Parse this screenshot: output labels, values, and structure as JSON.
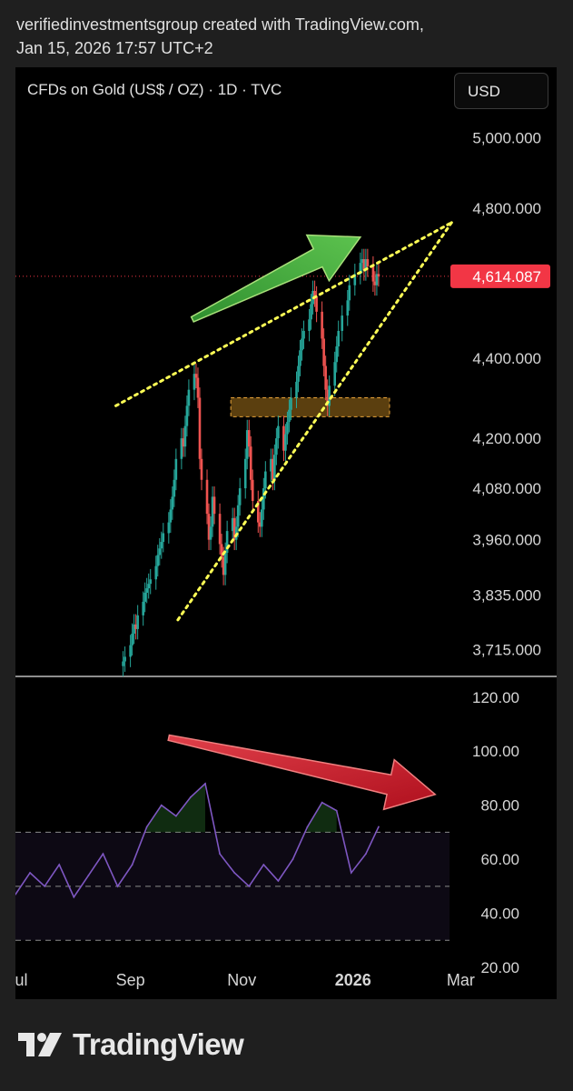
{
  "header": {
    "line1": "verifiedinvestmentsgroup created with TradingView.com,",
    "line2": "Jan 15, 2026 17:57 UTC+2"
  },
  "toolbar": {
    "currency": "USD"
  },
  "brand": {
    "name": "TradingView",
    "icon": "tradingview-logo-icon"
  },
  "colors": {
    "up": "#26a69a",
    "down": "#ef5350",
    "price_tag": "#f23645",
    "rsi": "#7e57c2",
    "up_arrow": "#3aa83a",
    "down_arrow": "#c8202e",
    "trendline": "#ffff55",
    "zone": "#6b4a12"
  },
  "chart_data": [
    {
      "type": "candlestick",
      "title": "CFDs on Gold (US$ / OZ) · 1D · TVC",
      "y_tick_labels": [
        "5,000.000",
        "4,800.000",
        "4,400.000",
        "4,200.000",
        "4,080.000",
        "3,960.000",
        "3,835.000",
        "3,715.000"
      ],
      "y_ticks": [
        5000,
        4800,
        4400,
        4200,
        4080,
        3960,
        3835,
        3715
      ],
      "y_scale": "log",
      "ylim": [
        3660,
        5100
      ],
      "last_price": 4614.087,
      "last_price_label": "4,614.087",
      "x_tick_labels": [
        "Jul",
        "Sep",
        "Nov",
        "2026",
        "Mar"
      ],
      "x_ticks": [
        "2025-07-01",
        "2025-09-01",
        "2025-11-01",
        "2026-01-01",
        "2026-03-01"
      ],
      "xlim": [
        "2025-06-30",
        "2026-04-12"
      ],
      "candles_close": [
        [
          "2025-08-28",
          3690
        ],
        [
          "2025-08-29",
          3700
        ],
        [
          "2025-09-01",
          3725
        ],
        [
          "2025-09-02",
          3750
        ],
        [
          "2025-09-03",
          3770
        ],
        [
          "2025-09-04",
          3760
        ],
        [
          "2025-09-05",
          3790
        ],
        [
          "2025-09-08",
          3820
        ],
        [
          "2025-09-09",
          3840
        ],
        [
          "2025-09-10",
          3850
        ],
        [
          "2025-09-11",
          3860
        ],
        [
          "2025-09-12",
          3870
        ],
        [
          "2025-09-15",
          3900
        ],
        [
          "2025-09-16",
          3925
        ],
        [
          "2025-09-17",
          3940
        ],
        [
          "2025-09-18",
          3955
        ],
        [
          "2025-09-19",
          3975
        ],
        [
          "2025-09-22",
          4000
        ],
        [
          "2025-09-23",
          4030
        ],
        [
          "2025-09-24",
          4060
        ],
        [
          "2025-09-25",
          4100
        ],
        [
          "2025-09-26",
          4150
        ],
        [
          "2025-09-29",
          4200
        ],
        [
          "2025-09-30",
          4180
        ],
        [
          "2025-10-01",
          4230
        ],
        [
          "2025-10-02",
          4280
        ],
        [
          "2025-10-03",
          4320
        ],
        [
          "2025-10-06",
          4360
        ],
        [
          "2025-10-07",
          4350
        ],
        [
          "2025-10-08",
          4300
        ],
        [
          "2025-10-09",
          4150
        ],
        [
          "2025-10-10",
          4100
        ],
        [
          "2025-10-13",
          4020
        ],
        [
          "2025-10-14",
          3960
        ],
        [
          "2025-10-15",
          3990
        ],
        [
          "2025-10-16",
          4060
        ],
        [
          "2025-10-17",
          4020
        ],
        [
          "2025-10-20",
          3950
        ],
        [
          "2025-10-21",
          3920
        ],
        [
          "2025-10-22",
          3880
        ],
        [
          "2025-10-23",
          3930
        ],
        [
          "2025-10-24",
          3980
        ],
        [
          "2025-10-27",
          4010
        ],
        [
          "2025-10-28",
          3960
        ],
        [
          "2025-10-29",
          3990
        ],
        [
          "2025-10-30",
          4040
        ],
        [
          "2025-10-31",
          4080
        ],
        [
          "2025-11-03",
          4150
        ],
        [
          "2025-11-04",
          4220
        ],
        [
          "2025-11-05",
          4180
        ],
        [
          "2025-11-06",
          4100
        ],
        [
          "2025-11-07",
          4050
        ],
        [
          "2025-11-10",
          4000
        ],
        [
          "2025-11-11",
          3990
        ],
        [
          "2025-11-12",
          4030
        ],
        [
          "2025-11-13",
          4080
        ],
        [
          "2025-11-14",
          4120
        ],
        [
          "2025-11-17",
          4150
        ],
        [
          "2025-11-18",
          4100
        ],
        [
          "2025-11-19",
          4160
        ],
        [
          "2025-11-20",
          4200
        ],
        [
          "2025-11-21",
          4230
        ],
        [
          "2025-11-24",
          4170
        ],
        [
          "2025-11-25",
          4210
        ],
        [
          "2025-11-26",
          4240
        ],
        [
          "2025-11-27",
          4270
        ],
        [
          "2025-11-28",
          4300
        ],
        [
          "2025-12-01",
          4340
        ],
        [
          "2025-12-02",
          4380
        ],
        [
          "2025-12-03",
          4420
        ],
        [
          "2025-12-04",
          4450
        ],
        [
          "2025-12-05",
          4470
        ],
        [
          "2025-12-08",
          4500
        ],
        [
          "2025-12-09",
          4540
        ],
        [
          "2025-12-10",
          4575
        ],
        [
          "2025-12-11",
          4560
        ],
        [
          "2025-12-12",
          4520
        ],
        [
          "2025-12-15",
          4450
        ],
        [
          "2025-12-16",
          4380
        ],
        [
          "2025-12-17",
          4320
        ],
        [
          "2025-12-18",
          4280
        ],
        [
          "2025-12-19",
          4330
        ],
        [
          "2025-12-22",
          4390
        ],
        [
          "2025-12-23",
          4430
        ],
        [
          "2025-12-24",
          4470
        ],
        [
          "2025-12-26",
          4510
        ],
        [
          "2025-12-29",
          4550
        ],
        [
          "2025-12-30",
          4590
        ],
        [
          "2026-01-02",
          4620
        ],
        [
          "2026-01-05",
          4650
        ],
        [
          "2026-01-06",
          4660
        ],
        [
          "2026-01-07",
          4630
        ],
        [
          "2026-01-08",
          4660
        ],
        [
          "2026-01-09",
          4640
        ],
        [
          "2026-01-12",
          4600
        ],
        [
          "2026-01-13",
          4590
        ],
        [
          "2026-01-14",
          4620
        ],
        [
          "2026-01-15",
          4614
        ]
      ],
      "annotations": [
        {
          "kind": "dotted-trendline",
          "from": [
            "2025-08-24",
            4280
          ],
          "to": [
            "2026-02-24",
            4760
          ]
        },
        {
          "kind": "dotted-trendline",
          "from": [
            "2025-09-27",
            3780
          ],
          "to": [
            "2026-02-24",
            4760
          ]
        },
        {
          "kind": "zone",
          "from": [
            "2025-10-26",
            4300
          ],
          "to": [
            "2026-01-21",
            4253
          ]
        },
        {
          "kind": "arrow",
          "color": "green",
          "from": [
            "2025-10-05",
            4500
          ],
          "to": [
            "2026-01-05",
            4720
          ]
        }
      ]
    },
    {
      "type": "line",
      "title": "",
      "y_tick_labels": [
        "120.00",
        "100.00",
        "80.00",
        "60.00",
        "40.00",
        "20.00"
      ],
      "y_ticks": [
        120,
        100,
        80,
        60,
        40,
        20
      ],
      "ylim": [
        20,
        127
      ],
      "bands": [
        70,
        50,
        30
      ],
      "x": [
        "2025-06-30",
        "2025-07-08",
        "2025-07-16",
        "2025-07-24",
        "2025-08-01",
        "2025-08-09",
        "2025-08-17",
        "2025-08-25",
        "2025-09-02",
        "2025-09-10",
        "2025-09-18",
        "2025-09-26",
        "2025-10-04",
        "2025-10-12",
        "2025-10-20",
        "2025-10-28",
        "2025-11-05",
        "2025-11-13",
        "2025-11-21",
        "2025-11-29",
        "2025-12-07",
        "2025-12-15",
        "2025-12-23",
        "2025-12-31",
        "2026-01-08",
        "2026-01-15"
      ],
      "values": [
        47,
        55,
        50,
        58,
        46,
        54,
        62,
        50,
        58,
        72,
        80,
        76,
        83,
        88,
        62,
        55,
        50,
        58,
        52,
        60,
        72,
        81,
        78,
        55,
        62,
        72
      ],
      "annotations": [
        {
          "kind": "arrow",
          "color": "red",
          "from": [
            "2025-09-22",
            105
          ],
          "to": [
            "2026-02-15",
            84
          ]
        }
      ]
    }
  ]
}
